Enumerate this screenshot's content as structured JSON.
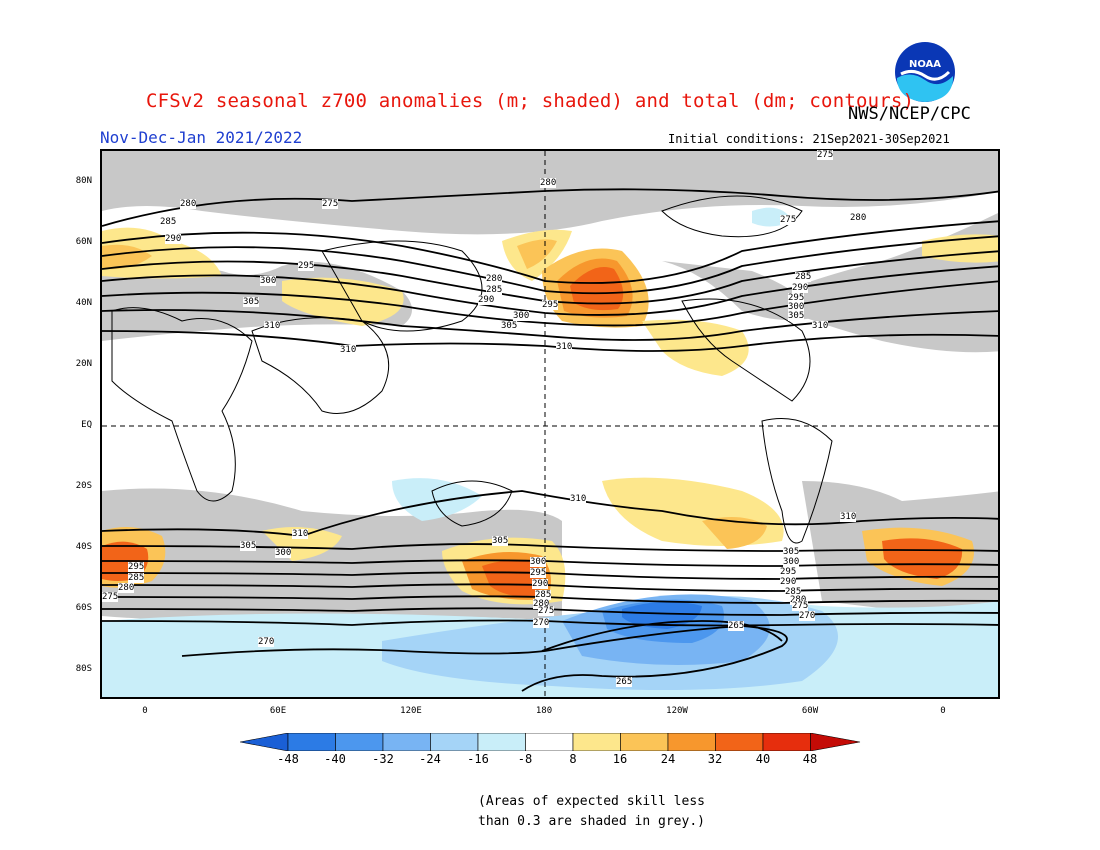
{
  "header": {
    "title": "CFSv2 seasonal z700 anomalies (m; shaded) and total (dm; contours)",
    "agency": "NWS/NCEP/CPC",
    "season": "Nov-Dec-Jan 2021/2022",
    "initial_conditions": "Initial conditions: 21Sep2021-30Sep2021",
    "logo_text": "NOAA"
  },
  "axes": {
    "lat_labels": [
      "80N",
      "60N",
      "40N",
      "20N",
      "EQ",
      "20S",
      "40S",
      "60S",
      "80S"
    ],
    "lon_labels": [
      "0",
      "60E",
      "120E",
      "180",
      "120W",
      "60W",
      "0"
    ]
  },
  "contour_labels": [
    "275",
    "280",
    "285",
    "290",
    "295",
    "300",
    "305",
    "310",
    "270",
    "265"
  ],
  "colorbar": {
    "ticks": [
      "-48",
      "-40",
      "-32",
      "-24",
      "-16",
      "-8",
      "8",
      "16",
      "24",
      "32",
      "40",
      "48"
    ],
    "colors": [
      "#1a5fd6",
      "#2c7be5",
      "#4c97ee",
      "#78b4f3",
      "#a5d4f7",
      "#c9eef9",
      "#ffffff",
      "#fde78c",
      "#fbc457",
      "#f7972d",
      "#f26418",
      "#e62e0d",
      "#c40b06"
    ]
  },
  "colors": {
    "grey_skill": "#c8c8c8",
    "title_red": "#e8160c",
    "season_blue": "#1f3fd0"
  },
  "note": {
    "line1": "(Areas of expected skill less",
    "line2": "than 0.3 are shaded in grey.)"
  }
}
